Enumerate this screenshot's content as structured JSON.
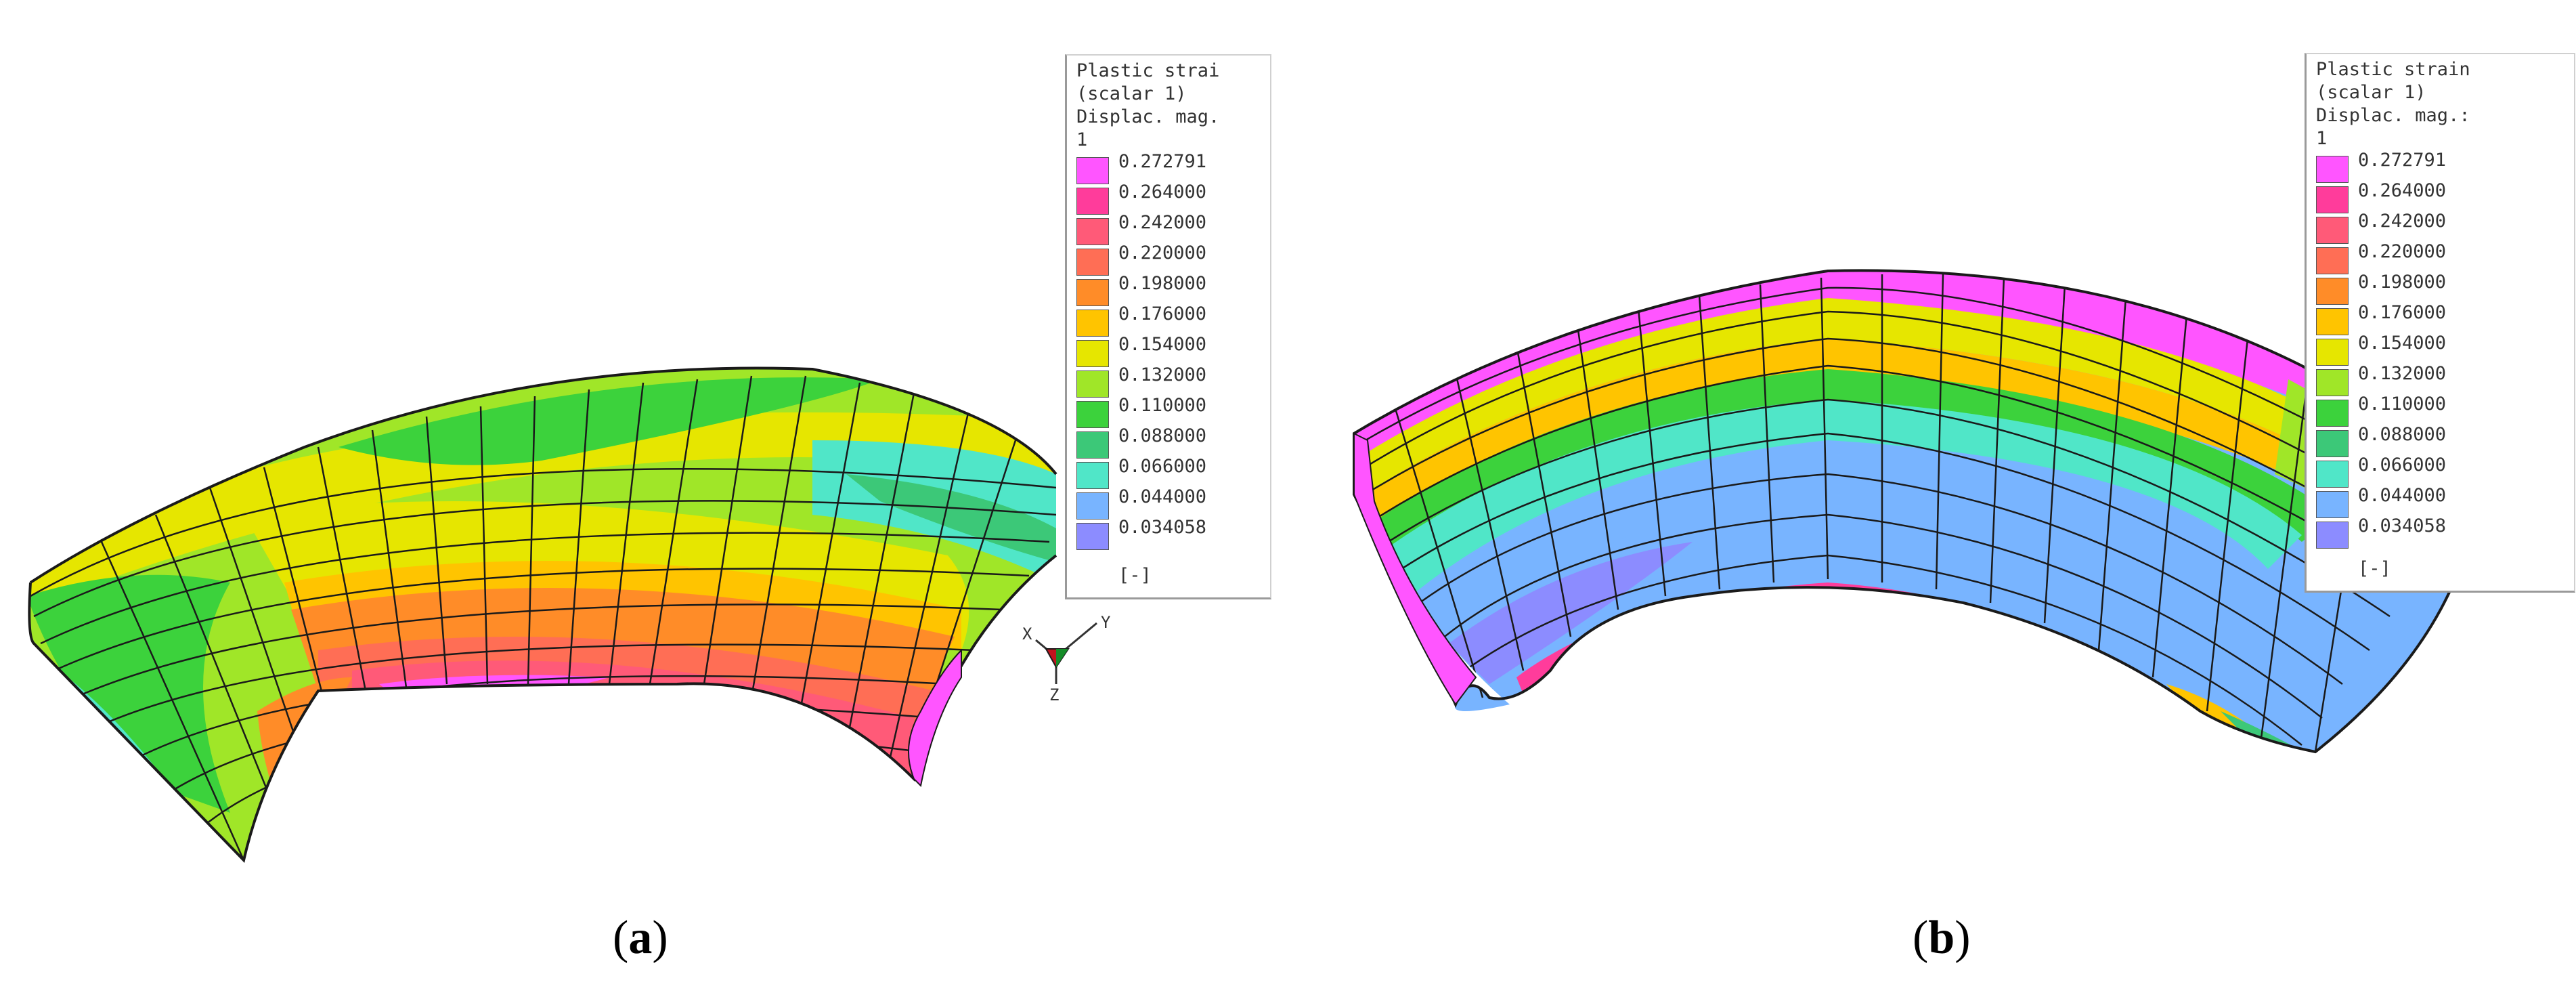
{
  "panels": [
    {
      "id": "a",
      "legend": {
        "title_lines": [
          "Plastic strai",
          "(scalar 1)",
          "Displac. mag.",
          "1"
        ],
        "values": [
          "0.272791",
          "0.264000",
          "0.242000",
          "0.220000",
          "0.198000",
          "0.176000",
          "0.154000",
          "0.132000",
          "0.110000",
          "0.088000",
          "0.066000",
          "0.044000",
          "0.034058"
        ],
        "unit": "[-]"
      },
      "caption": "a",
      "triad": {
        "x": "X",
        "y": "Y",
        "z": "Z"
      }
    },
    {
      "id": "b",
      "legend": {
        "title_lines": [
          "Plastic strain",
          "(scalar 1)",
          "Displac. mag.:",
          "1"
        ],
        "values": [
          "0.272791",
          "0.264000",
          "0.242000",
          "0.220000",
          "0.198000",
          "0.176000",
          "0.154000",
          "0.132000",
          "0.110000",
          "0.088000",
          "0.066000",
          "0.044000",
          "0.034058"
        ],
        "unit": "[-]"
      },
      "caption": "b"
    }
  ],
  "colors": {
    "scale": [
      "#ff55ff",
      "#ff3c9b",
      "#ff5a78",
      "#ff6e55",
      "#ff8c28",
      "#ffc400",
      "#e6e600",
      "#a0e628",
      "#3cd23c",
      "#3cc878",
      "#50e6c8",
      "#78b4ff",
      "#8c8cff"
    ],
    "mesh": "#1a1a1a"
  }
}
